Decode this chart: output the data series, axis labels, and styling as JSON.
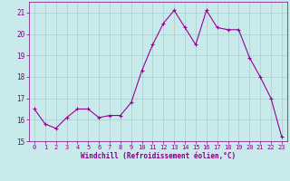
{
  "x": [
    0,
    1,
    2,
    3,
    4,
    5,
    6,
    7,
    8,
    9,
    10,
    11,
    12,
    13,
    14,
    15,
    16,
    17,
    18,
    19,
    20,
    21,
    22,
    23
  ],
  "y": [
    16.5,
    15.8,
    15.6,
    16.1,
    16.5,
    16.5,
    16.1,
    16.2,
    16.2,
    16.8,
    18.3,
    19.5,
    20.5,
    21.1,
    20.3,
    19.5,
    21.1,
    20.3,
    20.2,
    20.2,
    18.9,
    18.0,
    17.0,
    15.2
  ],
  "line_color": "#990099",
  "marker": "s",
  "marker_size": 2,
  "bg_color": "#c8eaea",
  "grid_color": "#aacccc",
  "xlabel": "Windchill (Refroidissement éolien,°C)",
  "xlabel_color": "#800080",
  "tick_color": "#800080",
  "ylim": [
    15,
    21.5
  ],
  "yticks": [
    15,
    16,
    17,
    18,
    19,
    20,
    21
  ],
  "xlim": [
    -0.5,
    23.5
  ],
  "xticks": [
    0,
    1,
    2,
    3,
    4,
    5,
    6,
    7,
    8,
    9,
    10,
    11,
    12,
    13,
    14,
    15,
    16,
    17,
    18,
    19,
    20,
    21,
    22,
    23
  ],
  "figsize": [
    3.2,
    2.0
  ],
  "dpi": 100
}
